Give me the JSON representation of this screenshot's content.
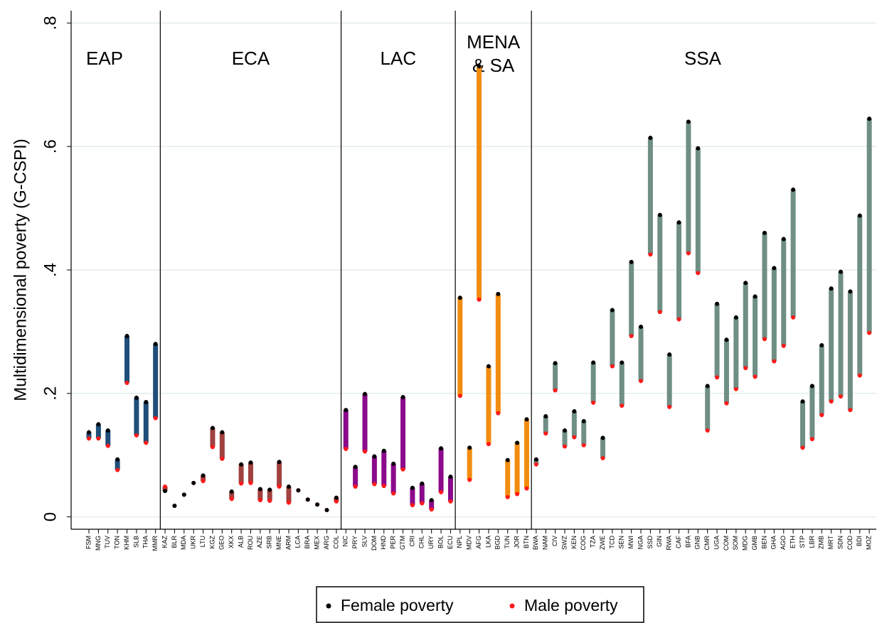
{
  "chart_data": {
    "type": "dumbbell",
    "y_label": "Multidimensional poverty (G-CSPI)",
    "ylim": [
      -0.02,
      0.82
    ],
    "yticks": [
      0,
      {
        "value": 0.2,
        "label": ".2"
      },
      {
        "value": 0.4,
        "label": ".4"
      },
      {
        "value": 0.6,
        "label": ".6"
      },
      {
        "value": 0.8,
        "label": ".8"
      }
    ],
    "grid": true,
    "groups": [
      {
        "label": "EAP",
        "color": "#1f4e79",
        "categories": [
          "FSM",
          "MNG",
          "TUV",
          "TON",
          "KHM",
          "SLB",
          "THA",
          "MMR"
        ]
      },
      {
        "label": "ECA",
        "color": "#a0413f",
        "categories": [
          "KAZ",
          "BLR",
          "MDA",
          "UKR",
          "LTU",
          "KGZ",
          "GEO",
          "XKX",
          "ALB",
          "ROU",
          "AZE",
          "SRB",
          "MNE",
          "ARM",
          "LCA",
          "BRA",
          "MEX",
          "ARG",
          "COL"
        ]
      },
      {
        "label": "LAC",
        "color": "#8b0a8b",
        "categories": [
          "NIC",
          "PRY",
          "SLV",
          "DOM",
          "HND",
          "PER",
          "GTM",
          "CRI",
          "CHL",
          "URY",
          "BOL",
          "ECU"
        ]
      },
      {
        "label": "MENA & SA",
        "color": "#f28c0f",
        "categories": [
          "NPL",
          "MDV",
          "AFG",
          "LKA",
          "BGD",
          "TUN",
          "JOR",
          "BTN"
        ]
      },
      {
        "label": "SSA",
        "color": "#6f8f85",
        "categories": [
          "BWA",
          "NAM",
          "CIV",
          "SWZ",
          "KEN",
          "COG",
          "TZA",
          "ZWE",
          "TCD",
          "SEN",
          "MWI",
          "NGA",
          "SSD",
          "GIN",
          "RWA",
          "CAF",
          "BFA",
          "GNB",
          "CMR",
          "UGA",
          "COM",
          "SOM",
          "MDG",
          "GMB",
          "BEN",
          "GHA",
          "AGO",
          "ETH",
          "STP",
          "LBR",
          "ZMB",
          "MRT",
          "SDN",
          "COD",
          "BDI",
          "MOZ"
        ]
      }
    ],
    "series": [
      {
        "name": "Female poverty",
        "color": "#000000",
        "values": [
          0.137,
          0.15,
          0.14,
          0.093,
          0.293,
          0.193,
          0.186,
          0.28,
          0.042,
          0.018,
          0.036,
          0.055,
          0.067,
          0.144,
          0.137,
          0.041,
          0.085,
          0.088,
          0.045,
          0.044,
          0.089,
          0.049,
          0.043,
          0.028,
          0.02,
          0.011,
          0.031,
          0.173,
          0.081,
          0.199,
          0.098,
          0.107,
          0.086,
          0.194,
          0.047,
          0.054,
          0.027,
          0.111,
          0.065,
          0.355,
          0.112,
          0.73,
          0.244,
          0.361,
          0.092,
          0.12,
          0.158,
          0.093,
          0.163,
          0.249,
          0.14,
          0.171,
          0.155,
          0.25,
          0.128,
          0.335,
          0.25,
          0.413,
          0.308,
          0.614,
          0.489,
          0.263,
          0.477,
          0.64,
          0.597,
          0.212,
          0.345,
          0.287,
          0.323,
          0.379,
          0.357,
          0.46,
          0.403,
          0.45,
          0.53,
          0.187,
          0.212,
          0.278,
          0.37,
          0.397,
          0.365,
          0.488,
          0.645
        ]
      },
      {
        "name": "Male poverty",
        "color": "#ff1a1a",
        "values": [
          0.127,
          0.127,
          0.115,
          0.076,
          0.217,
          0.132,
          0.12,
          0.16,
          0.049,
          0.018,
          0.036,
          0.055,
          0.058,
          0.113,
          0.094,
          0.029,
          0.054,
          0.055,
          0.027,
          0.026,
          0.049,
          0.023,
          0.043,
          0.028,
          0.02,
          0.011,
          0.025,
          0.11,
          0.049,
          0.106,
          0.053,
          0.05,
          0.038,
          0.077,
          0.019,
          0.022,
          0.012,
          0.04,
          0.025,
          0.196,
          0.06,
          0.352,
          0.118,
          0.168,
          0.032,
          0.037,
          0.046,
          0.085,
          0.135,
          0.205,
          0.114,
          0.129,
          0.116,
          0.185,
          0.095,
          0.244,
          0.18,
          0.293,
          0.22,
          0.425,
          0.332,
          0.178,
          0.32,
          0.427,
          0.395,
          0.14,
          0.226,
          0.184,
          0.207,
          0.241,
          0.227,
          0.288,
          0.252,
          0.277,
          0.323,
          0.112,
          0.126,
          0.165,
          0.187,
          0.195,
          0.173,
          0.229,
          0.298
        ]
      }
    ]
  }
}
